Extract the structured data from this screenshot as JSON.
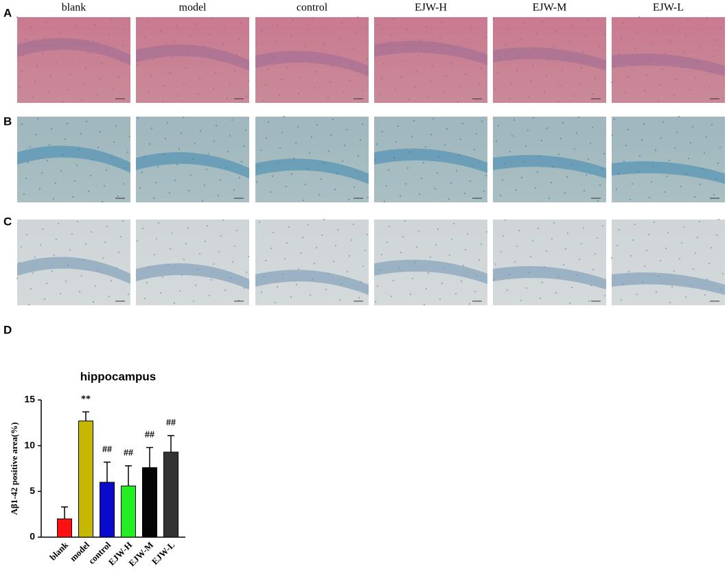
{
  "panels": [
    "A",
    "B",
    "C",
    "D"
  ],
  "columns": [
    "blank",
    "model",
    "control",
    "EJW-H",
    "EJW-M",
    "EJW-L"
  ],
  "chart_data": {
    "type": "bar",
    "title": "hippocampus",
    "y_label": "Aβ1-42 positive area(%)",
    "categories": [
      "blank",
      "model",
      "control",
      "EJW-H",
      "EJW-M",
      "EJW-L"
    ],
    "values": [
      2.0,
      12.7,
      6.0,
      5.6,
      7.6,
      9.3
    ],
    "errors": [
      1.3,
      1.0,
      2.2,
      2.2,
      2.2,
      1.8
    ],
    "annotations": [
      null,
      "**",
      "##",
      "##",
      "##",
      "##"
    ],
    "colors": [
      "#ff1010",
      "#c6b800",
      "#0a0acc",
      "#22ee22",
      "#050505",
      "#333333"
    ],
    "ylim": [
      0,
      15
    ],
    "yticks": [
      0,
      5,
      10,
      15
    ]
  }
}
